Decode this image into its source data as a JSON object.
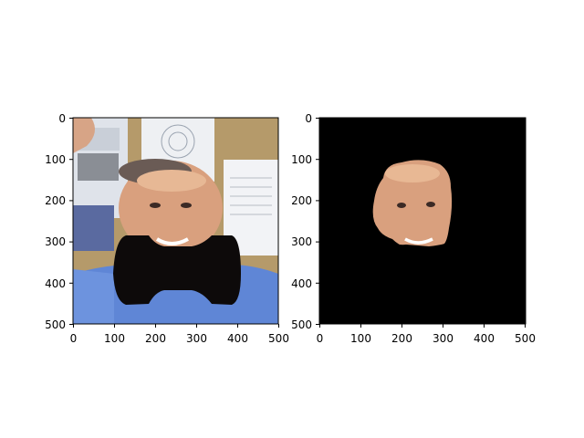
{
  "figure": {
    "panels": [
      {
        "name": "left-image-panel",
        "content": "photo-with-bowtie-occlusion",
        "xticks": [
          "0",
          "100",
          "200",
          "300",
          "400",
          "500"
        ],
        "yticks": [
          "0",
          "100",
          "200",
          "300",
          "400",
          "500"
        ]
      },
      {
        "name": "right-mask-panel",
        "content": "segmented-face-on-black",
        "xticks": [
          "0",
          "100",
          "200",
          "300",
          "400",
          "500"
        ],
        "yticks": [
          "0",
          "100",
          "200",
          "300",
          "400",
          "500"
        ]
      }
    ],
    "colors": {
      "background": "#ffffff",
      "shirt": "#5f86d6",
      "skin": "#d9a07e",
      "wall": "#b59a6a",
      "mask_bg": "#000000",
      "bowtie": "#0d0a0a"
    }
  }
}
